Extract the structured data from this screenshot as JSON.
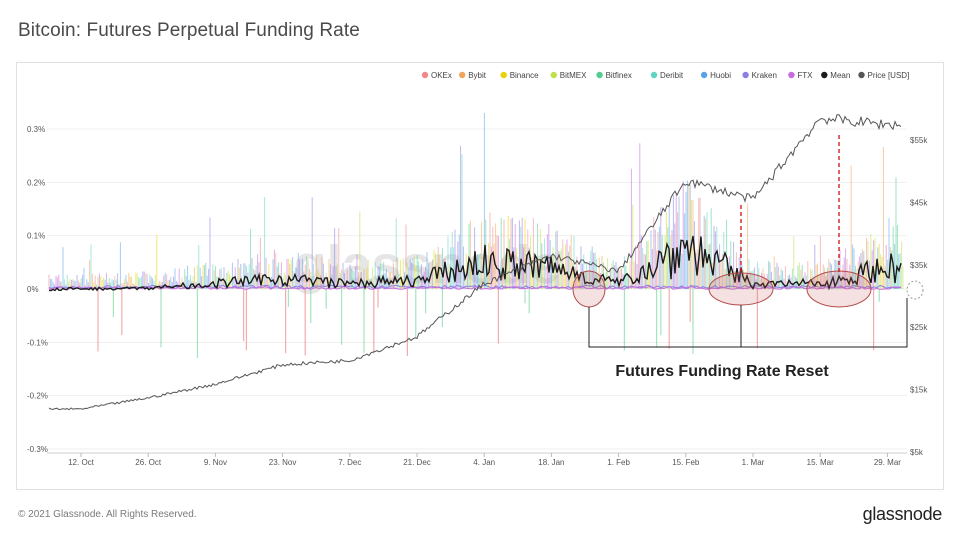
{
  "title": "Bitcoin: Futures Perpetual Funding Rate",
  "footer": {
    "copyright": "© 2021 Glassnode. All Rights Reserved.",
    "logo": "glassnode"
  },
  "watermark": "glassnode",
  "annotation": {
    "label": "Futures Funding Rate Reset"
  },
  "chart_data": {
    "type": "line",
    "legend": [
      {
        "name": "OKEx",
        "color": "#f08a8a"
      },
      {
        "name": "Bybit",
        "color": "#f2a55a"
      },
      {
        "name": "Binance",
        "color": "#e8d20a"
      },
      {
        "name": "BitMEX",
        "color": "#bfe04a"
      },
      {
        "name": "Bitfinex",
        "color": "#4fce8f"
      },
      {
        "name": "Deribit",
        "color": "#5fd6c4"
      },
      {
        "name": "Huobi",
        "color": "#5aa3e6"
      },
      {
        "name": "Kraken",
        "color": "#8a80e0"
      },
      {
        "name": "FTX",
        "color": "#c66be0"
      },
      {
        "name": "Mean",
        "color": "#1a1a1a"
      },
      {
        "name": "Price [USD]",
        "color": "#555555"
      }
    ],
    "legend_position": "top-right",
    "x_ticks": [
      "12. Oct",
      "26. Oct",
      "9. Nov",
      "23. Nov",
      "7. Dec",
      "21. Dec",
      "4. Jan",
      "18. Jan",
      "1. Feb",
      "15. Feb",
      "1. Mar",
      "15. Mar",
      "29. Mar"
    ],
    "y_left": {
      "ticks": [
        "0.3%",
        "0.2%",
        "0.1%",
        "0%",
        "-0.1%",
        "-0.2%",
        "-0.3%"
      ],
      "range": [
        -0.3,
        0.3
      ]
    },
    "y_right": {
      "ticks": [
        "$55k",
        "$45k",
        "$35k",
        "$25k",
        "$15k",
        "$5k"
      ],
      "range": [
        5000,
        60000
      ],
      "scale": "linear"
    },
    "series": [
      {
        "name": "Mean",
        "x": [
          "12. Oct",
          "26. Oct",
          "9. Nov",
          "23. Nov",
          "7. Dec",
          "21. Dec",
          "4. Jan",
          "18. Jan",
          "1. Feb",
          "15. Feb",
          "1. Mar",
          "15. Mar",
          "29. Mar"
        ],
        "values": [
          0.0,
          0.002,
          0.01,
          0.02,
          0.01,
          0.015,
          0.05,
          0.04,
          0.01,
          0.08,
          0.01,
          0.01,
          0.04
        ]
      },
      {
        "name": "Price [USD]",
        "x": [
          "12. Oct",
          "26. Oct",
          "9. Nov",
          "23. Nov",
          "7. Dec",
          "21. Dec",
          "4. Jan",
          "18. Jan",
          "1. Feb",
          "15. Feb",
          "1. Mar",
          "15. Mar",
          "29. Mar"
        ],
        "values": [
          11400,
          13200,
          15400,
          18500,
          19200,
          23000,
          31500,
          36000,
          33500,
          48000,
          45000,
          58000,
          57000
        ]
      }
    ]
  }
}
